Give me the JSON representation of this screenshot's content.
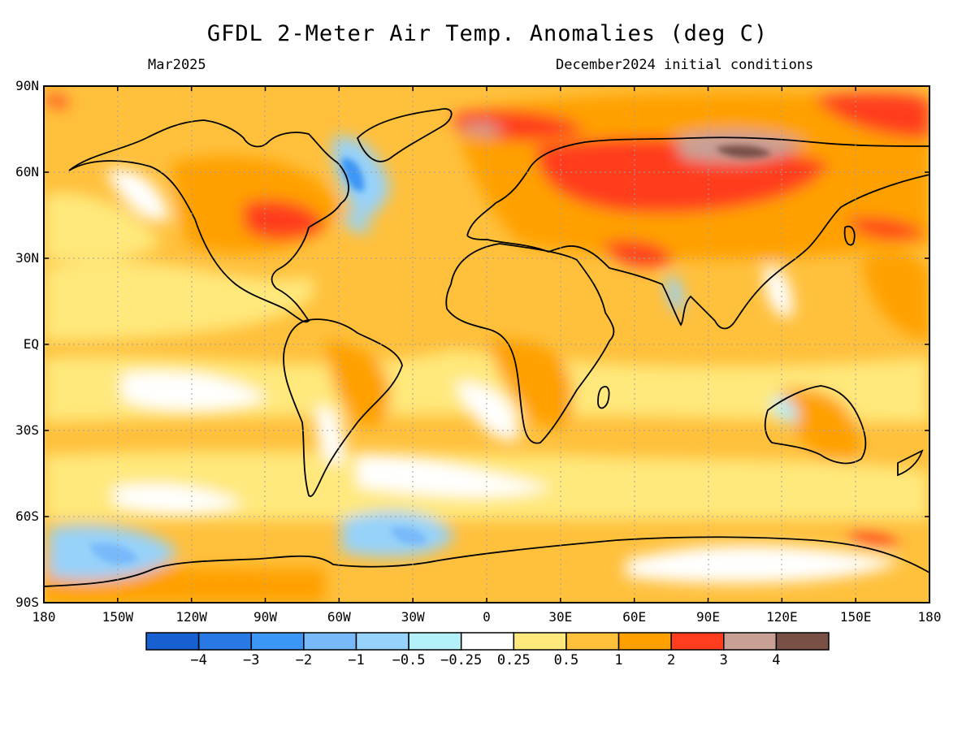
{
  "header": {
    "title": "GFDL 2-Meter Air Temp. Anomalies (deg C)",
    "valid_month": "Mar2025",
    "initial_conditions": "December2024 initial conditions"
  },
  "map": {
    "lat_labels": [
      "90N",
      "60N",
      "30N",
      "EQ",
      "30S",
      "60S",
      "90S"
    ],
    "lat_values": [
      90,
      60,
      30,
      0,
      -30,
      -60,
      -90
    ],
    "lon_labels": [
      "180",
      "150W",
      "120W",
      "90W",
      "60W",
      "30W",
      "0",
      "30E",
      "60E",
      "90E",
      "120E",
      "150E",
      "180"
    ],
    "lon_values": [
      -180,
      -150,
      -120,
      -90,
      -60,
      -30,
      0,
      30,
      60,
      90,
      120,
      150,
      180
    ]
  },
  "colorbar": {
    "colors": [
      "#1660d2",
      "#2878e6",
      "#3c96f5",
      "#78b9fa",
      "#96d2fa",
      "#b4f0fa",
      "#ffffff",
      "#ffe87c",
      "#ffc03c",
      "#ffa000",
      "#ff3c1e",
      "#c8a096",
      "#785046"
    ],
    "labels": [
      "-4",
      "-3",
      "-2",
      "-1",
      "-0.5",
      "-0.25",
      "0.25",
      "0.5",
      "1",
      "2",
      "3",
      "4"
    ]
  }
}
